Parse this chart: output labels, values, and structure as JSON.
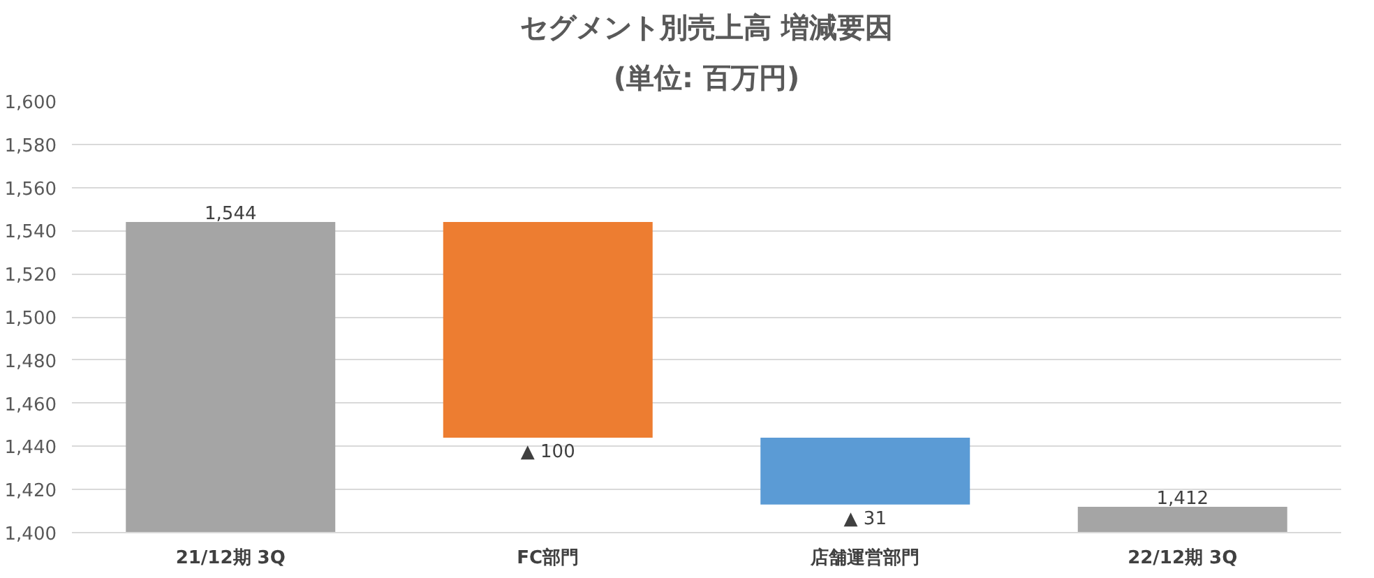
{
  "chart_data": {
    "type": "bar",
    "title": "セグメント別売上高 増減要因",
    "subtitle": "(単位: 百万円)",
    "categories": [
      "21/12期 3Q",
      "FC部門",
      "店舗運営部門",
      "22/12期 3Q"
    ],
    "values": [
      1544,
      -100,
      -31,
      1412
    ],
    "base": [
      null,
      1544,
      1444,
      null
    ],
    "colors": [
      "#a5a5a5",
      "#ed7d31",
      "#5b9bd5",
      "#a5a5a5"
    ],
    "value_labels": [
      "1,544",
      "▲ 100",
      "▲ 31",
      "1,412"
    ],
    "ylim": [
      1400,
      1600
    ],
    "yticks": [
      {
        "value": 1400,
        "label": "1,400"
      },
      {
        "value": 1420,
        "label": "1,420"
      },
      {
        "value": 1440,
        "label": "1,440"
      },
      {
        "value": 1460,
        "label": "1,460"
      },
      {
        "value": 1480,
        "label": "1,480"
      },
      {
        "value": 1500,
        "label": "1,500"
      },
      {
        "value": 1520,
        "label": "1,520"
      },
      {
        "value": 1540,
        "label": "1,540"
      },
      {
        "value": 1560,
        "label": "1,560"
      },
      {
        "value": 1580,
        "label": "1,580"
      },
      {
        "value": 1600,
        "label": "1,600"
      }
    ],
    "grid": "y"
  }
}
